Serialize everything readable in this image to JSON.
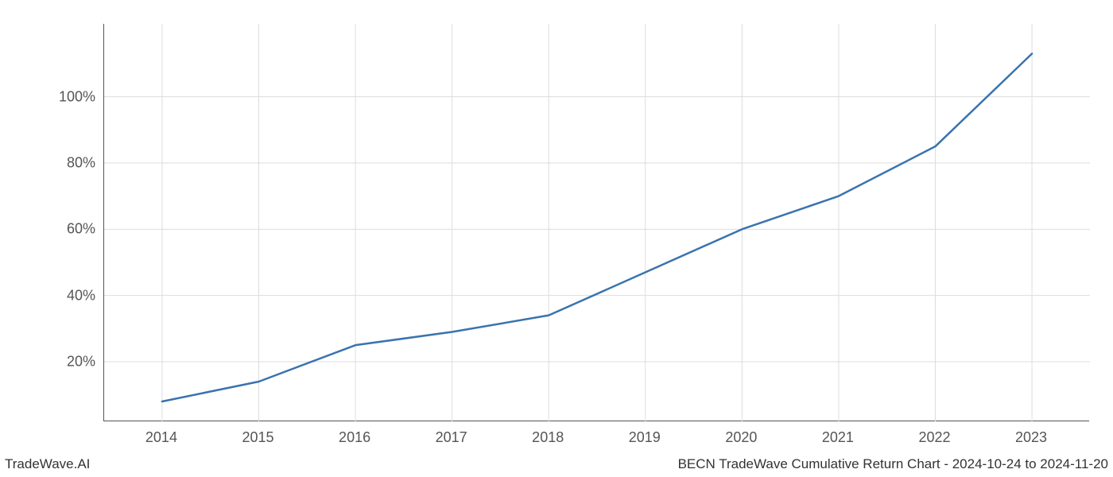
{
  "chart": {
    "type": "line",
    "x_values": [
      2014,
      2015,
      2016,
      2017,
      2018,
      2019,
      2020,
      2021,
      2022,
      2023
    ],
    "y_values": [
      8,
      14,
      25,
      29,
      34,
      47,
      60,
      70,
      85,
      113
    ],
    "xlim": [
      2013.4,
      2023.6
    ],
    "ylim": [
      2,
      122
    ],
    "x_ticks": [
      2014,
      2015,
      2016,
      2017,
      2018,
      2019,
      2020,
      2021,
      2022,
      2023
    ],
    "x_tick_labels": [
      "2014",
      "2015",
      "2016",
      "2017",
      "2018",
      "2019",
      "2020",
      "2021",
      "2022",
      "2023"
    ],
    "y_ticks": [
      20,
      40,
      60,
      80,
      100
    ],
    "y_tick_labels": [
      "20%",
      "40%",
      "60%",
      "80%",
      "100%"
    ],
    "line_color": "#3a73af",
    "line_width": 2.5,
    "grid_color": "#dddddd",
    "background_color": "#ffffff",
    "spine_color": "#555555",
    "tick_label_color": "#555555",
    "tick_label_fontsize": 18
  },
  "footer": {
    "left_text": "TradeWave.AI",
    "right_text": "BECN TradeWave Cumulative Return Chart - 2024-10-24 to 2024-11-20",
    "fontsize": 17,
    "color": "#333333"
  }
}
